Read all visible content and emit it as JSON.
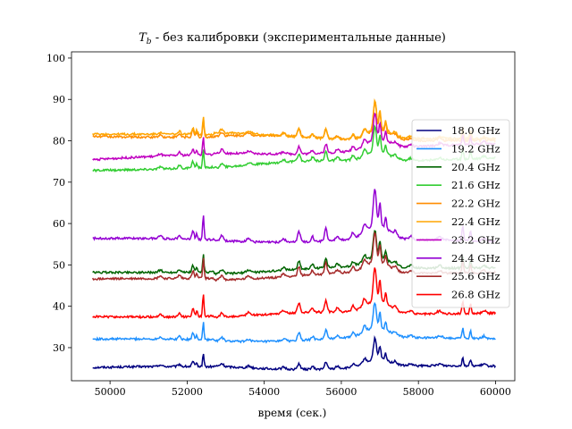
{
  "chart_data": {
    "type": "line",
    "title_symbol": "T",
    "title_subscript": "b",
    "title_rest": " - без калибровки (экспериментальные данные)",
    "xlabel": "время (сек.)",
    "ylabel": "",
    "xlim": [
      49000,
      60500
    ],
    "ylim": [
      22,
      101.5
    ],
    "xticks": [
      50000,
      52000,
      54000,
      56000,
      58000,
      60000
    ],
    "yticks": [
      30,
      40,
      50,
      60,
      70,
      80,
      90,
      100
    ],
    "grid": false,
    "legend_position": "right",
    "x_start": 49550,
    "x_end": 60000,
    "series": [
      {
        "name": "18.0 GHz",
        "color": "#000080",
        "base": 25.2,
        "end": 25.5,
        "peak_scale": 0.55
      },
      {
        "name": "19.2 GHz",
        "color": "#1e90ff",
        "base": 31.9,
        "end": 32.3,
        "peak_scale": 0.7
      },
      {
        "name": "20.4 GHz",
        "color": "#006400",
        "base": 48.0,
        "end": 49.5,
        "peak_scale": 0.75
      },
      {
        "name": "21.6 GHz",
        "color": "#32cd32",
        "base": 72.8,
        "end": 76.0,
        "peak_scale": 0.7
      },
      {
        "name": "22.2 GHz",
        "color": "#ff8c00",
        "base": 81.2,
        "end": 80.0,
        "peak_scale": 0.75
      },
      {
        "name": "22.4 GHz",
        "color": "#ffa500",
        "base": 81.8,
        "end": 80.3,
        "peak_scale": 0.75
      },
      {
        "name": "23.2 GHz",
        "color": "#c000c0",
        "base": 75.5,
        "end": 79.2,
        "peak_scale": 0.7
      },
      {
        "name": "24.4 GHz",
        "color": "#9400d3",
        "base": 56.3,
        "end": 55.8,
        "peak_scale": 1.0
      },
      {
        "name": "25.6 GHz",
        "color": "#a52a2a",
        "base": 46.4,
        "end": 48.3,
        "peak_scale": 0.8
      },
      {
        "name": "26.8 GHz",
        "color": "#ff0000",
        "base": 37.4,
        "end": 38.5,
        "peak_scale": 0.9
      }
    ]
  }
}
